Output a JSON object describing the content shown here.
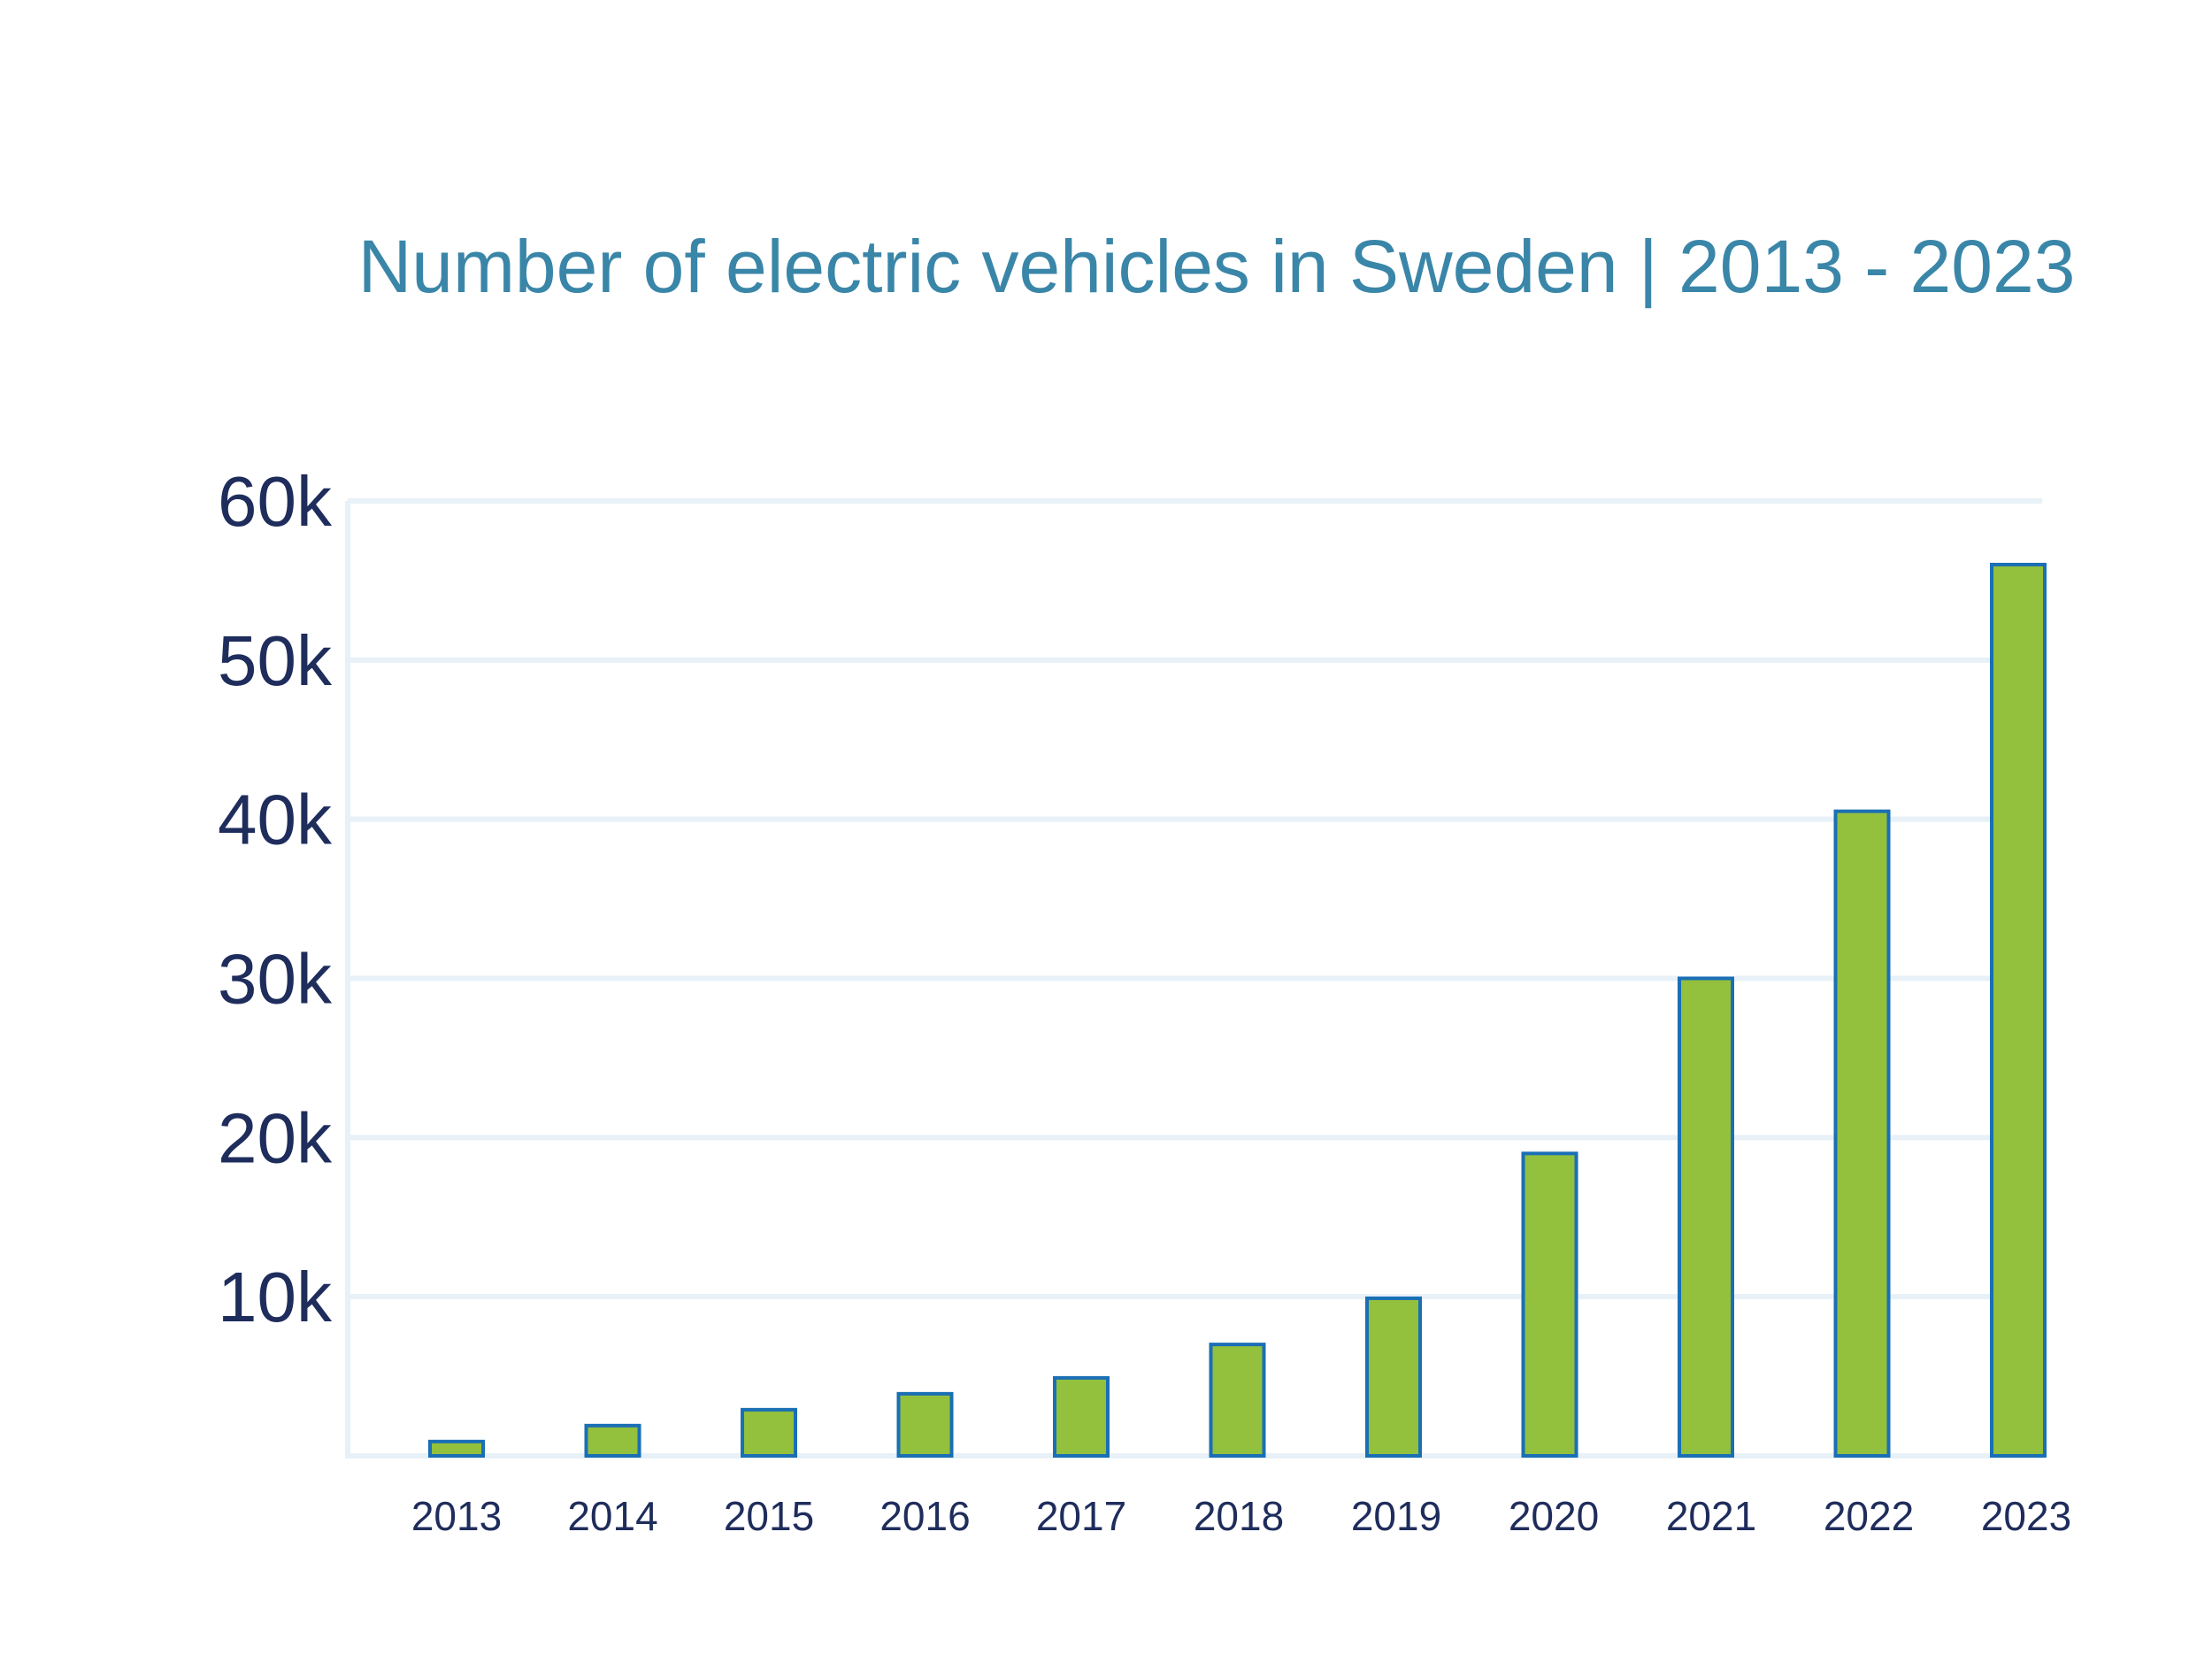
{
  "chart_data": {
    "type": "bar",
    "title": "Number of electric vehicles in Sweden | 2013 - 2023",
    "xlabel": "",
    "ylabel": "",
    "categories": [
      "2013",
      "2014",
      "2015",
      "2016",
      "2017",
      "2018",
      "2019",
      "2020",
      "2021",
      "2022",
      "2023"
    ],
    "series": [
      {
        "values": [
          900,
          1900,
          2900,
          3900,
          4900,
          7000,
          9900,
          19000,
          30000,
          40500,
          56000
        ]
      }
    ],
    "ylim": [
      0,
      60000
    ],
    "yticks": [
      {
        "value": 10000,
        "label": "10k"
      },
      {
        "value": 20000,
        "label": "20k"
      },
      {
        "value": 30000,
        "label": "30k"
      },
      {
        "value": 40000,
        "label": "40k"
      },
      {
        "value": 50000,
        "label": "50k"
      },
      {
        "value": 60000,
        "label": "60k"
      }
    ],
    "grid": true,
    "legend": "none",
    "colors": {
      "bar_fill": "#93c03d",
      "bar_stroke": "#1a6fb5",
      "grid": "#e8f1f8",
      "title": "#3a86a8",
      "tick_text": "#1f2d5c"
    }
  }
}
